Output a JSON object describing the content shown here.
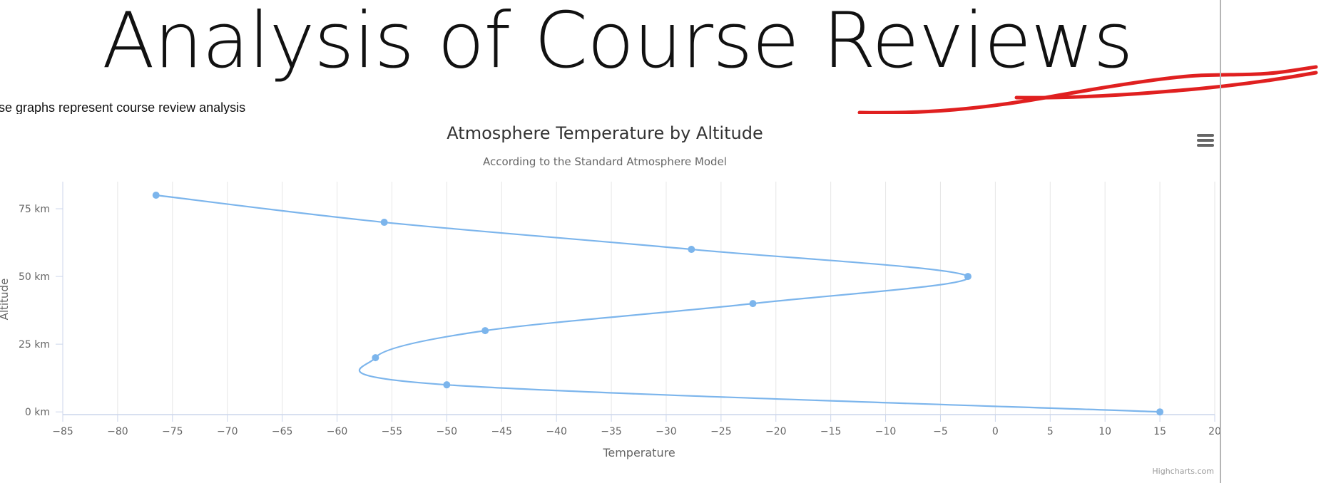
{
  "page": {
    "heading": "Analysis of Course Reviews",
    "intro": "ese graphs represent course review analysis"
  },
  "colors": {
    "series": "#7cb5ec",
    "grid": "#e6e6e6",
    "axis": "#ccd6eb",
    "title": "#333333",
    "label": "#666666",
    "annotation": "#e02020"
  },
  "icons": {
    "export_menu": "hamburger-menu-icon"
  },
  "chart_data": {
    "type": "line",
    "title": "Atmosphere Temperature by Altitude",
    "subtitle": "According to the Standard Atmosphere Model",
    "xlabel": "Temperature",
    "ylabel": "Altitude",
    "inverted": true,
    "xlim": [
      -85,
      20
    ],
    "ylim": [
      -1,
      85
    ],
    "x_ticks": [
      -85,
      -80,
      -75,
      -70,
      -65,
      -60,
      -55,
      -50,
      -45,
      -40,
      -35,
      -30,
      -25,
      -20,
      -15,
      -10,
      -5,
      0,
      5,
      10,
      15,
      20
    ],
    "y_ticks": [
      0,
      25,
      50,
      75
    ],
    "y_tick_labels": [
      "0 km",
      "25 km",
      "50 km",
      "75 km"
    ],
    "series": [
      {
        "points": [
          {
            "altitude": 0,
            "temperature": 15
          },
          {
            "altitude": 10,
            "temperature": -50
          },
          {
            "altitude": 20,
            "temperature": -56.5
          },
          {
            "altitude": 30,
            "temperature": -46.5
          },
          {
            "altitude": 40,
            "temperature": -22.1
          },
          {
            "altitude": 50,
            "temperature": -2.5
          },
          {
            "altitude": 60,
            "temperature": -27.7
          },
          {
            "altitude": 70,
            "temperature": -55.7
          },
          {
            "altitude": 80,
            "temperature": -76.5
          }
        ]
      }
    ],
    "credits": "Highcharts.com",
    "grid": "vertical",
    "legend": "none"
  }
}
